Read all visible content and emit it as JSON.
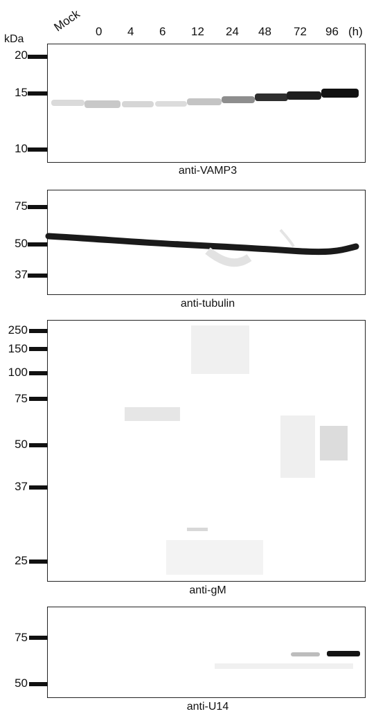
{
  "kda_label": "kDa",
  "lanes": [
    "Mock",
    "0",
    "4",
    "6",
    "12",
    "24",
    "48",
    "72",
    "96"
  ],
  "hour_unit": "(h)",
  "panels": [
    {
      "caption": "anti-VAMP3",
      "markers": [
        "20",
        "15",
        "10"
      ]
    },
    {
      "caption": "anti-tubulin",
      "markers": [
        "75",
        "50",
        "37"
      ]
    },
    {
      "caption": "anti-gM",
      "markers": [
        "250",
        "150",
        "100",
        "75",
        "50",
        "37",
        "25"
      ]
    },
    {
      "caption": "anti-U14",
      "markers": [
        "75",
        "50"
      ]
    }
  ]
}
